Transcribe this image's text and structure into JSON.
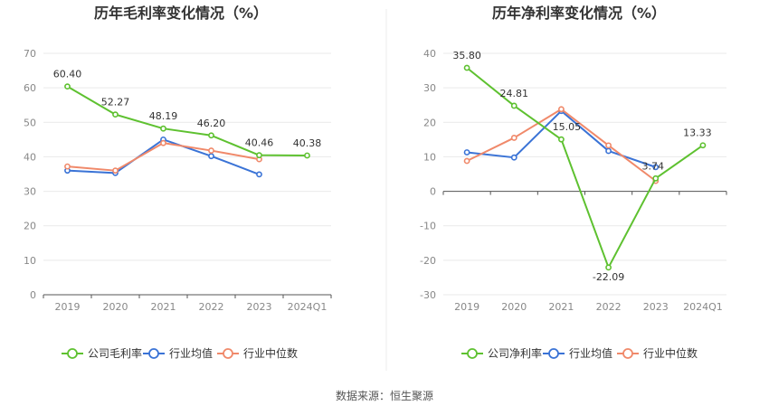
{
  "source_label": "数据来源：恒生聚源",
  "chart_data": [
    {
      "type": "line",
      "title": "历年毛利率变化情况（%）",
      "categories": [
        "2019",
        "2020",
        "2021",
        "2022",
        "2023",
        "2024Q1"
      ],
      "ylim": [
        0,
        70
      ],
      "yticks": [
        0,
        10,
        20,
        30,
        40,
        50,
        60,
        70
      ],
      "grid": true,
      "legend_position": "bottom",
      "series": [
        {
          "name": "公司毛利率",
          "color": "#5ec130",
          "values": [
            60.4,
            52.27,
            48.19,
            46.2,
            40.46,
            40.38
          ],
          "labels": [
            "60.40",
            "52.27",
            "48.19",
            "46.20",
            "40.46",
            "40.38"
          ]
        },
        {
          "name": "行业均值",
          "color": "#3a73d6",
          "values": [
            36.0,
            35.3,
            45.0,
            40.2,
            34.9,
            null
          ]
        },
        {
          "name": "行业中位数",
          "color": "#f0896a",
          "values": [
            37.2,
            36.0,
            44.0,
            41.8,
            39.3,
            null
          ]
        }
      ]
    },
    {
      "type": "line",
      "title": "历年净利率变化情况（%）",
      "categories": [
        "2019",
        "2020",
        "2021",
        "2022",
        "2023",
        "2024Q1"
      ],
      "ylim": [
        -30,
        40
      ],
      "yticks": [
        -30,
        -20,
        -10,
        0,
        10,
        20,
        30,
        40
      ],
      "grid": true,
      "legend_position": "bottom",
      "series": [
        {
          "name": "公司净利率",
          "color": "#5ec130",
          "values": [
            35.8,
            24.81,
            15.05,
            -22.09,
            3.74,
            13.33
          ],
          "labels": [
            "35.80",
            "24.81",
            "15.05",
            "-22.09",
            "3.74",
            "13.33"
          ]
        },
        {
          "name": "行业均值",
          "color": "#3a73d6",
          "values": [
            11.3,
            9.8,
            23.3,
            11.7,
            7.0,
            null
          ]
        },
        {
          "name": "行业中位数",
          "color": "#f0896a",
          "values": [
            8.8,
            15.5,
            23.8,
            13.3,
            3.0,
            null
          ]
        }
      ]
    }
  ]
}
